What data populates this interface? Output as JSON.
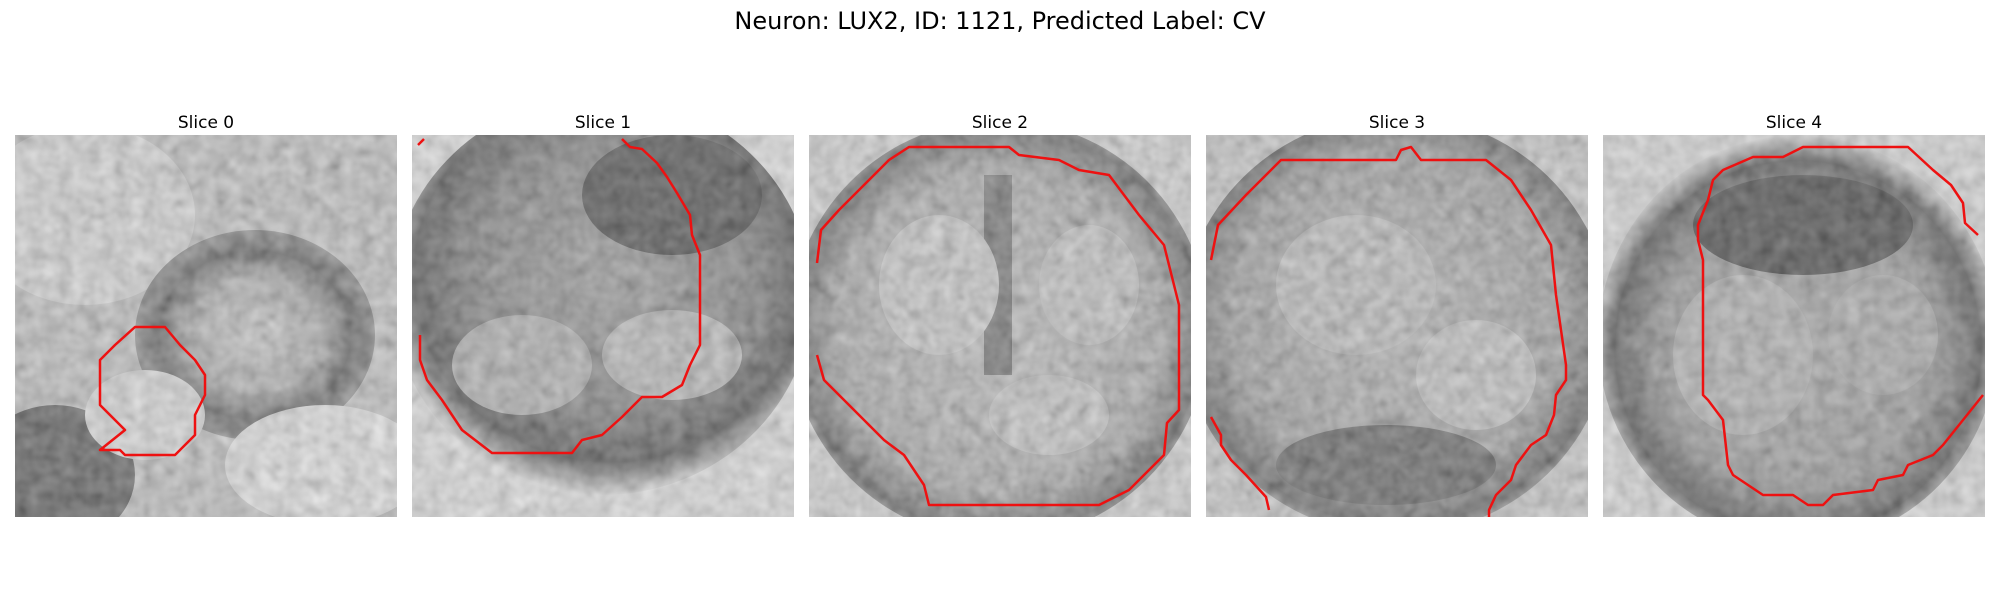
{
  "figure": {
    "title": "Neuron: LUX2, ID: 1121, Predicted Label: CV"
  },
  "panels": [
    {
      "title": "Slice 0"
    },
    {
      "title": "Slice 1"
    },
    {
      "title": "Slice 2"
    },
    {
      "title": "Slice 3"
    },
    {
      "title": "Slice 4"
    }
  ],
  "colors": {
    "contour": "#ee1111"
  }
}
